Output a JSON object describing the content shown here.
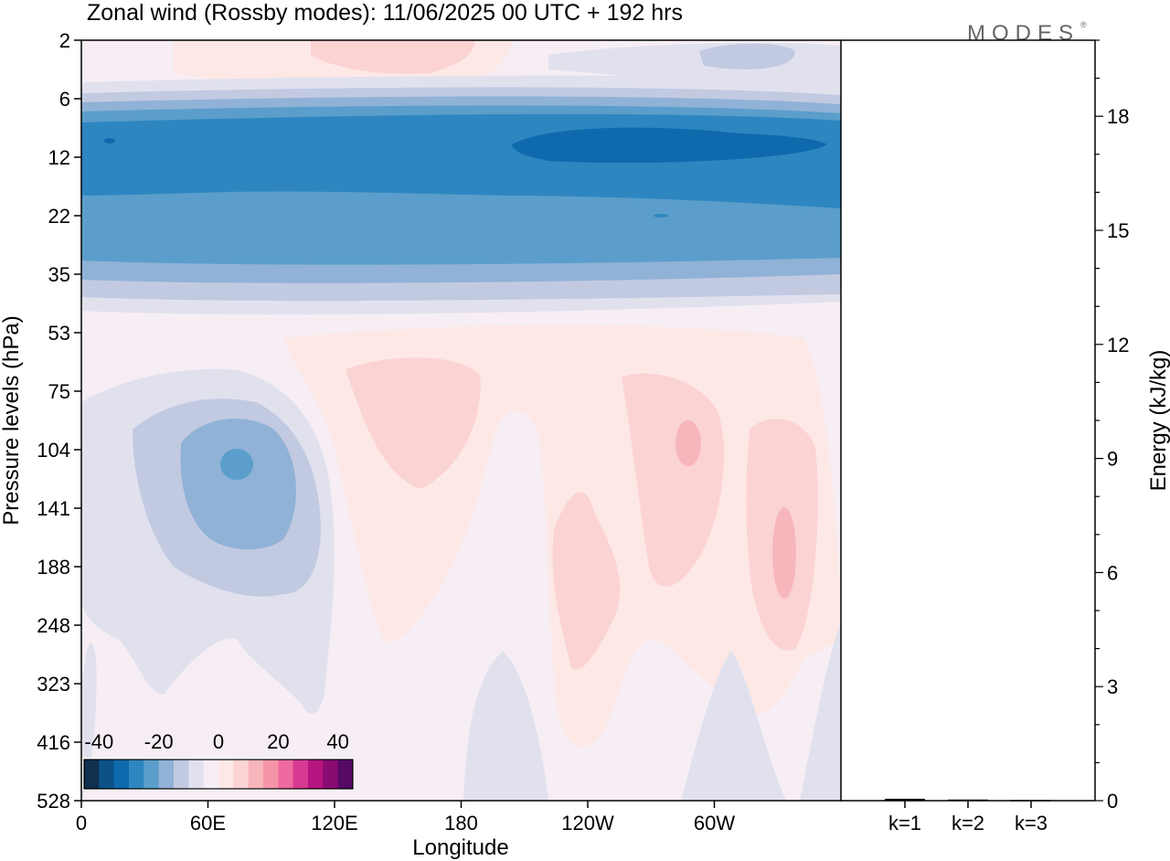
{
  "title": "Zonal wind (Rossby modes):  11/06/2025  00 UTC  + 192 hrs",
  "logo": {
    "text": "MODES",
    "mark": "®"
  },
  "chart_data": [
    {
      "type": "heatmap",
      "title": "Zonal wind (Rossby modes):  11/06/2025  00 UTC  + 192 hrs",
      "xlabel": "Longitude",
      "ylabel": "Pressure levels (hPa)",
      "x_ticks": [
        "0",
        "60E",
        "120E",
        "180",
        "120W",
        "60W"
      ],
      "y_ticks": [
        "2",
        "6",
        "12",
        "22",
        "35",
        "53",
        "75",
        "104",
        "141",
        "188",
        "248",
        "323",
        "416",
        "528"
      ],
      "colorbar": {
        "labels": [
          "-40",
          "-20",
          "0",
          "20",
          "40"
        ],
        "colors": [
          "#10304f",
          "#0c5289",
          "#0e6aad",
          "#2e86c0",
          "#5b9ecb",
          "#90b2d6",
          "#c2cae2",
          "#e1e1ee",
          "#f6eef4",
          "#fde8e6",
          "#fbd3d3",
          "#f7b5bc",
          "#f594a8",
          "#ee6aa0",
          "#d63a92",
          "#b5157f",
          "#8a0b72",
          "#560a64"
        ],
        "range": [
          -45,
          45
        ]
      },
      "features": [
        {
          "level_hPa": "9-14",
          "longitude": "0-360",
          "value": -30
        },
        {
          "level_hPa": "10-13",
          "longitude": "100W-45W",
          "value": -35
        },
        {
          "level_hPa": "120",
          "longitude": "70E",
          "value": -20
        },
        {
          "level_hPa": "100",
          "longitude": "50W",
          "value": 15
        },
        {
          "level_hPa": "170",
          "longitude": "20W",
          "value": 15
        },
        {
          "level_hPa": "2-3",
          "longitude": "150E-200E",
          "value": 8
        }
      ]
    },
    {
      "type": "bar",
      "categories": [
        "k=1",
        "k=2",
        "k=3"
      ],
      "values": [
        0.05,
        0.03,
        0.02
      ],
      "ylabel": "Energy (kJ/kg)",
      "y_ticks": [
        "0",
        "3",
        "6",
        "9",
        "12",
        "15",
        "18"
      ],
      "ylim": [
        0,
        20
      ]
    }
  ]
}
